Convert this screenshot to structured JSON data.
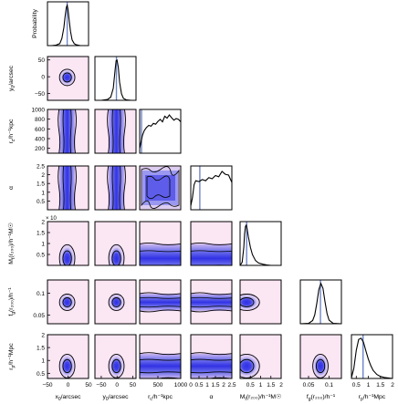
{
  "chart_data": {
    "type": "corner",
    "params": [
      {
        "key": "x0",
        "label_main": "x",
        "label_sub": "0",
        "label_rest": "/arcsec",
        "range": [
          -50,
          50
        ],
        "ticks": [
          -50,
          0,
          50
        ],
        "tick_labels": [
          "−50",
          "0",
          "50"
        ],
        "median": -2,
        "marginal": {
          "x": [
            -50,
            -40,
            -30,
            -20,
            -15,
            -10,
            -7,
            -4,
            -2,
            0,
            3,
            6,
            10,
            15,
            20,
            30,
            40,
            50
          ],
          "y": [
            0,
            0,
            0.01,
            0.05,
            0.18,
            0.45,
            0.72,
            0.95,
            1.0,
            0.9,
            0.62,
            0.36,
            0.14,
            0.05,
            0.02,
            0,
            0,
            0
          ]
        }
      },
      {
        "key": "y0",
        "label_main": "y",
        "label_sub": "0",
        "label_rest": "/arcsec",
        "range": [
          -70,
          60
        ],
        "ticks": [
          -50,
          0,
          50
        ],
        "tick_labels": [
          "−50",
          "0",
          "50"
        ],
        "median": -2,
        "marginal": {
          "x": [
            -70,
            -50,
            -30,
            -20,
            -12,
            -6,
            -3,
            0,
            4,
            8,
            14,
            20,
            30,
            45,
            60
          ],
          "y": [
            0,
            0,
            0.02,
            0.08,
            0.3,
            0.78,
            0.98,
            1.0,
            0.82,
            0.45,
            0.16,
            0.05,
            0.01,
            0,
            0
          ]
        }
      },
      {
        "key": "rc",
        "label_main": "r",
        "label_sub": "c",
        "label_rest": "/h⁻¹kpc",
        "range": [
          100,
          1000
        ],
        "ticks": [
          200,
          400,
          600,
          800,
          1000
        ],
        "tick_labels": [
          "200",
          "400",
          "600",
          "800",
          "1000"
        ],
        "bottom_ticks": [
          500,
          1000
        ],
        "bottom_tick_labels": [
          "500",
          "1000"
        ],
        "median": 140,
        "marginal": {
          "x": [
            100,
            130,
            160,
            200,
            250,
            300,
            350,
            400,
            450,
            500,
            550,
            600,
            650,
            700,
            750,
            800,
            850,
            900,
            950,
            1000
          ],
          "y": [
            0.12,
            0.28,
            0.44,
            0.56,
            0.64,
            0.69,
            0.67,
            0.74,
            0.72,
            0.79,
            0.84,
            0.78,
            0.92,
            0.87,
            0.95,
            0.88,
            0.82,
            0.86,
            0.84,
            0.78
          ]
        }
      },
      {
        "key": "alpha",
        "label_main": "α",
        "label_sub": "",
        "label_rest": "",
        "range": [
          0,
          2.5
        ],
        "ticks": [
          0.5,
          1,
          1.5,
          2,
          2.5
        ],
        "tick_labels": [
          "0.5",
          "1",
          "1.5",
          "2",
          "2.5"
        ],
        "bottom_ticks": [
          0,
          0.5,
          1,
          1.5,
          2,
          2.5
        ],
        "bottom_tick_labels": [
          "0",
          "0.5",
          "1",
          "1.5",
          "2",
          "2.5"
        ],
        "median": 0.55,
        "marginal": {
          "x": [
            0,
            0.1,
            0.2,
            0.3,
            0.5,
            0.7,
            0.9,
            1.1,
            1.3,
            1.5,
            1.7,
            1.9,
            2.1,
            2.3,
            2.5
          ],
          "y": [
            0.1,
            0.3,
            0.62,
            0.72,
            0.7,
            0.75,
            0.72,
            0.8,
            0.77,
            0.85,
            0.82,
            0.95,
            0.88,
            0.86,
            0.68
          ]
        }
      },
      {
        "key": "M200",
        "label_main": "M",
        "label_sub": "t",
        "label_rest": "(r₂₀₀)/h⁻¹M☉",
        "range": [
          0,
          2.0
        ],
        "ticks": [
          0.5,
          1,
          1.5,
          2
        ],
        "tick_labels": [
          "0.5",
          "1",
          "1.5",
          "2"
        ],
        "bottom_ticks": [
          0.5,
          1,
          1.5,
          2
        ],
        "bottom_tick_labels": [
          "0.5",
          "1",
          "1.5",
          "2"
        ],
        "scale_label": "× 10",
        "median": 0.32,
        "marginal": {
          "x": [
            0,
            0.1,
            0.18,
            0.22,
            0.26,
            0.3,
            0.34,
            0.4,
            0.5,
            0.6,
            0.75,
            0.9,
            1.1,
            1.3,
            1.5,
            2.0
          ],
          "y": [
            0,
            0.08,
            0.45,
            0.78,
            0.97,
            1.0,
            0.92,
            0.72,
            0.45,
            0.27,
            0.12,
            0.06,
            0.03,
            0.01,
            0,
            0
          ]
        }
      },
      {
        "key": "fg",
        "label_main": "f",
        "label_sub": "g",
        "label_rest": "(r₂₀₀)/h⁻¹",
        "range": [
          0.03,
          0.13
        ],
        "ticks": [
          0.05,
          0.1
        ],
        "tick_labels": [
          "0.05",
          "0.1"
        ],
        "bottom_ticks": [
          0.05,
          0.1
        ],
        "bottom_tick_labels": [
          "0.05",
          "0.1"
        ],
        "median": 0.079,
        "marginal": {
          "x": [
            0.03,
            0.05,
            0.06,
            0.065,
            0.07,
            0.075,
            0.08,
            0.085,
            0.09,
            0.095,
            0.1,
            0.11,
            0.13
          ],
          "y": [
            0,
            0.01,
            0.08,
            0.22,
            0.5,
            0.85,
            1.0,
            0.88,
            0.55,
            0.25,
            0.09,
            0.01,
            0
          ]
        }
      },
      {
        "key": "rp",
        "label_main": "r",
        "label_sub": "p",
        "label_rest": "/h⁻¹Mpc",
        "range": [
          0.3,
          2.0
        ],
        "ticks": [
          0.5,
          1,
          1.5,
          2
        ],
        "tick_labels": [
          "0.5",
          "1",
          "1.5",
          "2"
        ],
        "bottom_ticks": [
          0.5,
          1,
          1.5,
          2
        ],
        "bottom_tick_labels": [
          "0.5",
          "1",
          "1.5",
          "2"
        ],
        "median": 0.78,
        "marginal": {
          "x": [
            0.3,
            0.4,
            0.5,
            0.6,
            0.7,
            0.8,
            0.9,
            1.0,
            1.1,
            1.2,
            1.35,
            1.5,
            1.7,
            2.0
          ],
          "y": [
            0.02,
            0.25,
            0.7,
            0.97,
            1.0,
            0.9,
            0.68,
            0.48,
            0.32,
            0.2,
            0.1,
            0.05,
            0.02,
            0
          ]
        }
      }
    ],
    "diagonal_top_ylabel": "Probability",
    "colors": {
      "background": "#fbe6f3",
      "low": "#d9c9f2",
      "mid": "#8a8ff0",
      "high": "#3a3ae6",
      "contour": "#000000",
      "median_line": "#6f86c8"
    }
  }
}
